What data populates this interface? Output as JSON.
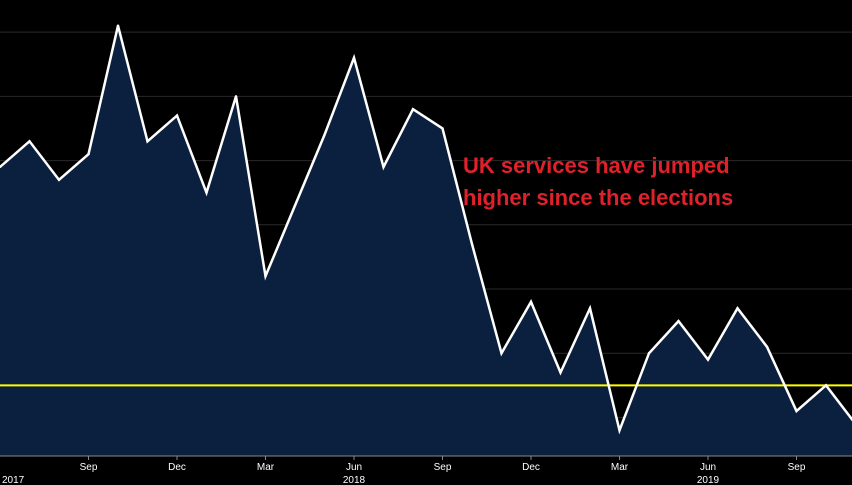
{
  "chart_data": {
    "type": "area",
    "x_months": [
      "Jun 2017",
      "Jul 2017",
      "Aug 2017",
      "Sep 2017",
      "Oct 2017",
      "Nov 2017",
      "Dec 2017",
      "Jan 2018",
      "Feb 2018",
      "Mar 2018",
      "Apr 2018",
      "May 2018",
      "Jun 2018",
      "Jul 2018",
      "Aug 2018",
      "Sep 2018",
      "Oct 2018",
      "Nov 2018",
      "Dec 2018",
      "Jan 2019",
      "Feb 2019",
      "Mar 2019",
      "Apr 2019",
      "May 2019",
      "Jun 2019",
      "Jul 2019",
      "Aug 2019",
      "Sep 2019",
      "Oct 2019",
      "Nov 2019",
      "Dec 2019"
    ],
    "values": [
      53.4,
      53.8,
      53.2,
      53.6,
      55.6,
      53.8,
      54.2,
      53.0,
      54.5,
      51.7,
      52.8,
      53.9,
      55.1,
      53.4,
      54.3,
      54.0,
      52.2,
      50.5,
      51.3,
      50.2,
      51.2,
      49.3,
      50.5,
      51.0,
      50.4,
      51.2,
      50.6,
      49.6,
      50.0,
      49.4,
      49.8
    ],
    "reference_line": 50.0,
    "ylim": [
      48.9,
      56.0
    ],
    "x_tick_labels": [
      "Sep",
      "Dec",
      "Mar",
      "Jun",
      "Sep",
      "Dec",
      "Mar",
      "Jun",
      "Sep"
    ],
    "x_tick_months": [
      "Sep 2017",
      "Dec 2017",
      "Mar 2018",
      "Jun 2018",
      "Sep 2018",
      "Dec 2018",
      "Mar 2019",
      "Jun 2019",
      "Sep 2019"
    ],
    "year_labels": [
      "2017",
      "2018",
      "2019"
    ],
    "year_label_months": [
      "Jan 2017",
      "Jun 2018",
      "Jun 2019"
    ],
    "grid": true,
    "colors": {
      "background": "#000000",
      "fill": "#0b1f3e",
      "line": "#ffffff",
      "reference_line": "#ffff00",
      "grid": "#2a2a2a",
      "annotation": "#e0202a"
    }
  },
  "annotation": {
    "line1": "UK services have jumped",
    "line2": "higher since the elections"
  }
}
